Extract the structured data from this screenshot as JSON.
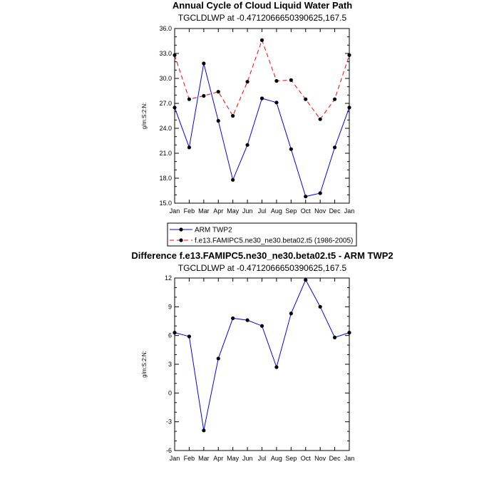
{
  "chart_data": [
    {
      "type": "line",
      "title": "Annual Cycle of Cloud Liquid Water Path",
      "subtitle": "TGCLDLWP at -0.4712066650390625,167.5",
      "xlabel": "",
      "ylabel": "g/m:S:2:N:",
      "categories": [
        "Jan",
        "Feb",
        "Mar",
        "Apr",
        "May",
        "Jun",
        "Jul",
        "Aug",
        "Sep",
        "Oct",
        "Nov",
        "Dec",
        "Jan"
      ],
      "ylim": [
        15.0,
        36.0
      ],
      "yticks": [
        "15.0",
        "18.0",
        "21.0",
        "24.0",
        "27.0",
        "30.0",
        "33.0",
        "36.0"
      ],
      "legend_position": "bottom",
      "series": [
        {
          "name": "ARM TWP2",
          "color": "#0000ff",
          "dash": "solid",
          "values": [
            26.5,
            21.7,
            31.8,
            24.9,
            17.8,
            22.0,
            27.6,
            27.1,
            21.5,
            15.8,
            16.2,
            21.7,
            26.5
          ]
        },
        {
          "name": "f.e13.FAMIPC5.ne30_ne30.beta02.t5 (1986-2005)",
          "color": "#ff0000",
          "dash": "dashed",
          "values": [
            32.8,
            27.5,
            27.9,
            28.4,
            25.5,
            29.6,
            34.6,
            29.7,
            29.8,
            27.5,
            25.1,
            27.5,
            32.8
          ]
        }
      ]
    },
    {
      "type": "line",
      "title": "Difference f.e13.FAMIPC5.ne30_ne30.beta02.t5 - ARM TWP2",
      "subtitle": "TGCLDLWP at -0.4712066650390625,167.5",
      "xlabel": "",
      "ylabel": "g/m:S:2:N:",
      "categories": [
        "Jan",
        "Feb",
        "Mar",
        "Apr",
        "May",
        "Jun",
        "Jul",
        "Aug",
        "Sep",
        "Oct",
        "Nov",
        "Dec",
        "Jan"
      ],
      "ylim": [
        -6,
        12
      ],
      "yticks": [
        "-6",
        "-3",
        "0",
        "3",
        "6",
        "9",
        "12"
      ],
      "series": [
        {
          "color": "#0000ff",
          "dash": "solid",
          "values": [
            6.3,
            5.9,
            -3.9,
            3.6,
            7.8,
            7.6,
            7.0,
            2.7,
            8.3,
            11.8,
            9.0,
            5.8,
            6.3
          ]
        }
      ]
    }
  ]
}
